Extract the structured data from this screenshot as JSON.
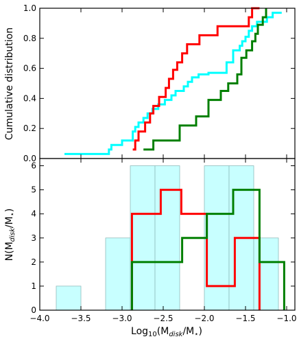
{
  "chart_data": [
    {
      "type": "line",
      "subtype": "step-cdf",
      "ylabel": "Cumulative distribution",
      "xlim": [
        -4.0,
        -0.9
      ],
      "ylim": [
        0.0,
        1.0
      ],
      "y_ticks": [
        "0.0",
        "0.2",
        "0.4",
        "0.6",
        "0.8",
        "1.0"
      ],
      "grid": false,
      "series": [
        {
          "color": "#00ffff",
          "x": [
            -3.7,
            -3.16,
            -3.13,
            -3.0,
            -2.87,
            -2.84,
            -2.8,
            -2.74,
            -2.69,
            -2.63,
            -2.56,
            -2.48,
            -2.4,
            -2.35,
            -2.25,
            -2.2,
            -2.15,
            -2.07,
            -2.02,
            -1.95,
            -1.84,
            -1.73,
            -1.65,
            -1.57,
            -1.54,
            -1.5,
            -1.46,
            -1.42,
            -1.36,
            -1.24,
            -1.17,
            -1.06
          ],
          "y": [
            0.03,
            0.06,
            0.09,
            0.12,
            0.18,
            0.21,
            0.24,
            0.27,
            0.3,
            0.33,
            0.36,
            0.39,
            0.42,
            0.45,
            0.48,
            0.51,
            0.54,
            0.56,
            0.56,
            0.57,
            0.57,
            0.64,
            0.72,
            0.75,
            0.78,
            0.81,
            0.85,
            0.88,
            0.91,
            0.94,
            0.97,
            0.97
          ]
        },
        {
          "color": "#ff0000",
          "x": [
            -2.87,
            -2.84,
            -2.8,
            -2.72,
            -2.66,
            -2.62,
            -2.55,
            -2.47,
            -2.43,
            -2.38,
            -2.33,
            -2.27,
            -2.21,
            -2.06,
            -1.95,
            -1.84,
            -1.75,
            -1.46,
            -1.42,
            -1.36,
            -1.33
          ],
          "y": [
            0.06,
            0.12,
            0.18,
            0.24,
            0.3,
            0.35,
            0.41,
            0.47,
            0.53,
            0.59,
            0.64,
            0.7,
            0.76,
            0.82,
            0.82,
            0.88,
            0.88,
            0.94,
            1.0,
            1.0,
            1.0
          ]
        },
        {
          "color": "#007f00",
          "x": [
            -2.74,
            -2.62,
            -2.3,
            -2.1,
            -1.95,
            -1.8,
            -1.71,
            -1.6,
            -1.55,
            -1.49,
            -1.42,
            -1.38,
            -1.35,
            -1.29,
            -1.25
          ],
          "y": [
            0.06,
            0.12,
            0.22,
            0.28,
            0.39,
            0.45,
            0.5,
            0.56,
            0.67,
            0.72,
            0.78,
            0.83,
            0.89,
            0.94,
            1.0
          ]
        }
      ]
    },
    {
      "type": "bar",
      "subtype": "histogram",
      "xlabel": "Log₁₀(M_disk/M⋆)",
      "ylabel": "N(M_disk/M⋆)",
      "xlim": [
        -4.0,
        -0.9
      ],
      "ylim": [
        0,
        6.3
      ],
      "x_ticks": [
        "−4.0",
        "−3.5",
        "−3.0",
        "−2.5",
        "−2.0",
        "−1.5",
        "−1.0"
      ],
      "x_tick_values": [
        -4.0,
        -3.5,
        -3.0,
        -2.5,
        -2.0,
        -1.5,
        -1.0
      ],
      "y_ticks": [
        "0",
        "1",
        "2",
        "3",
        "4",
        "5",
        "6"
      ],
      "grid": false,
      "bin_edges": [
        -3.8,
        -3.32,
        -2.84,
        -2.36,
        -1.88,
        -1.4,
        -0.92
      ],
      "filled_bins": {
        "color": "#c8ffff",
        "edges": [
          -3.8,
          -3.5,
          -3.2,
          -2.9,
          -2.6,
          -2.3,
          -2.0,
          -1.7,
          -1.4,
          -1.1
        ],
        "values": [
          1,
          0,
          3,
          6,
          6,
          0,
          6,
          6,
          3
        ]
      },
      "series": [
        {
          "color": "#ff0000",
          "edges": [
            -2.88,
            -2.53,
            -2.28,
            -1.97,
            -1.63,
            -1.33
          ],
          "values": [
            4,
            5,
            4,
            1,
            3
          ]
        },
        {
          "color": "#007f00",
          "edges": [
            -2.88,
            -2.27,
            -1.97,
            -1.65,
            -1.33,
            -1.03
          ],
          "values": [
            2,
            3,
            4,
            5,
            2
          ]
        }
      ]
    }
  ]
}
